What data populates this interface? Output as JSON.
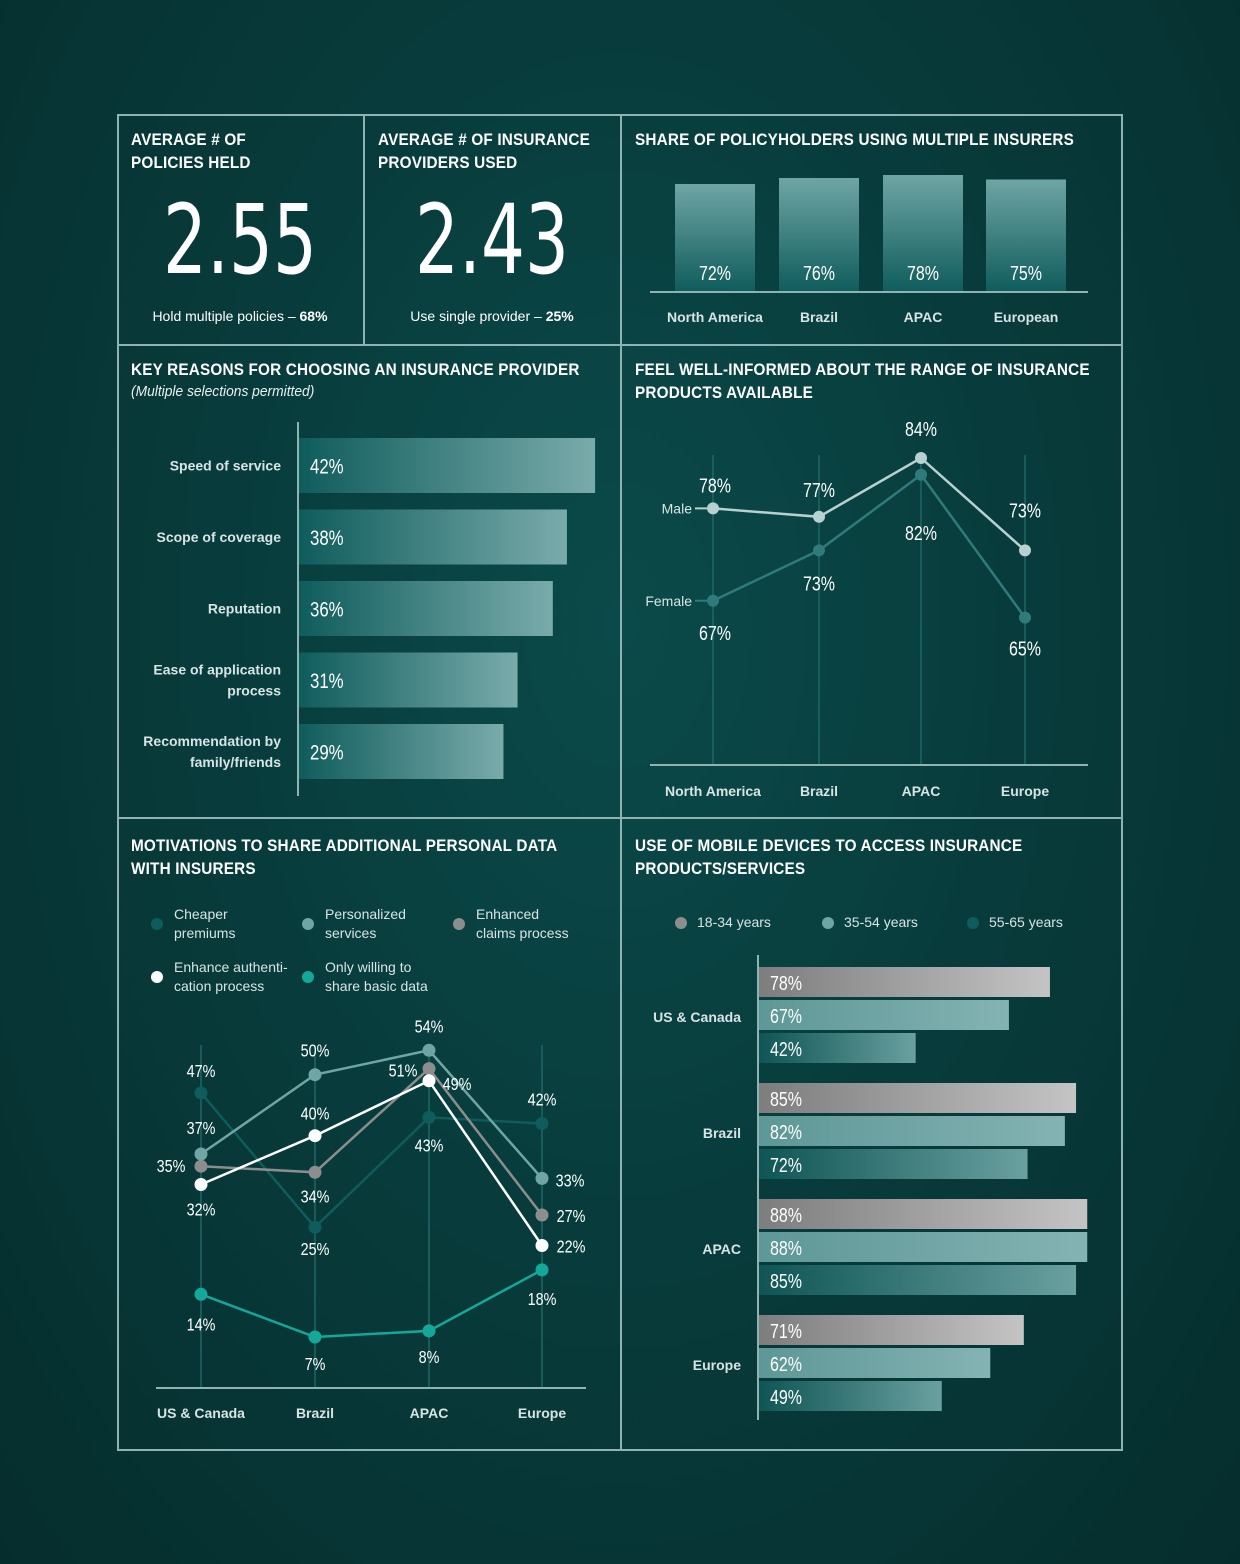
{
  "panels": {
    "avg_policies": {
      "title": "AVERAGE # OF\nPOLICIES HELD",
      "value": "2.55",
      "caption_text": "Hold multiple policies – ",
      "caption_value": "68%"
    },
    "avg_providers": {
      "title": "AVERAGE # OF INSURANCE\nPROVIDERS USED",
      "value": "2.43",
      "caption_text": "Use single provider – ",
      "caption_value": "25%"
    },
    "multiple_insurers": {
      "title": "SHARE OF POLICYHOLDERS USING MULTIPLE INSURERS"
    },
    "key_reasons": {
      "title": "KEY REASONS FOR CHOOSING AN INSURANCE PROVIDER",
      "subtitle": "(Multiple selections permitted)"
    },
    "well_informed": {
      "title": "FEEL WELL-INFORMED ABOUT THE RANGE OF INSURANCE\nPRODUCTS AVAILABLE"
    },
    "motivations": {
      "title": "MOTIVATIONS TO SHARE ADDITIONAL PERSONAL DATA\nWITH INSURERS"
    },
    "mobile": {
      "title": "USE OF MOBILE DEVICES TO ACCESS INSURANCE\nPRODUCTS/SERVICES"
    }
  },
  "colors": {
    "background": "#083c3c",
    "border": "#8fb3b3",
    "teal_dark": "#0f5c5c",
    "teal_mid": "#6fa5a5",
    "grey": "#8d8d8d",
    "white": "#ffffff",
    "bright_teal": "#13a89a"
  },
  "chart_data": [
    {
      "id": "multiple_insurers",
      "type": "bar",
      "categories": [
        "North America",
        "Brazil",
        "APAC",
        "European"
      ],
      "values": [
        72,
        76,
        78,
        75
      ],
      "value_labels": [
        "72%",
        "76%",
        "78%",
        "75%"
      ]
    },
    {
      "id": "key_reasons",
      "type": "bar",
      "orientation": "horizontal",
      "categories": [
        "Speed of service",
        "Scope of coverage",
        "Reputation",
        "Ease of application\nprocess",
        "Recommendation by\nfamily/friends"
      ],
      "values": [
        42,
        38,
        36,
        31,
        29
      ],
      "value_labels": [
        "42%",
        "38%",
        "36%",
        "31%",
        "29%"
      ]
    },
    {
      "id": "well_informed",
      "type": "line",
      "categories": [
        "North America",
        "Brazil",
        "APAC",
        "Europe"
      ],
      "series": [
        {
          "name": "Male",
          "values": [
            78,
            77,
            84,
            73
          ],
          "labels": [
            "78%",
            "77%",
            "84%",
            "73%"
          ],
          "color": "#b9d0d0"
        },
        {
          "name": "Female",
          "values": [
            67,
            73,
            82,
            65
          ],
          "labels": [
            "67%",
            "73%",
            "82%",
            "65%"
          ],
          "color": "#2f7b7b"
        }
      ]
    },
    {
      "id": "motivations",
      "type": "line",
      "categories": [
        "US & Canada",
        "Brazil",
        "APAC",
        "Europe"
      ],
      "series": [
        {
          "name": "Cheaper\npremiums",
          "values": [
            47,
            25,
            43,
            42
          ],
          "labels": [
            "47%",
            "25%",
            "43%",
            "42%"
          ],
          "color": "#0f5c5c"
        },
        {
          "name": "Personalized\nservices",
          "values": [
            37,
            50,
            54,
            33
          ],
          "labels": [
            "37%",
            "50%",
            "54%",
            "33%"
          ],
          "color": "#6fa5a5"
        },
        {
          "name": "Enhanced\nclaims process",
          "values": [
            35,
            34,
            51,
            27
          ],
          "labels": [
            "35%",
            "34%",
            "51%",
            "27%"
          ],
          "color": "#8d8d8d"
        },
        {
          "name": "Enhance authenti-\ncation process",
          "values": [
            32,
            40,
            49,
            22
          ],
          "labels": [
            "32%",
            "40%",
            "49%",
            "22%"
          ],
          "color": "#ffffff"
        },
        {
          "name": "Only willing to\nshare basic data",
          "values": [
            14,
            7,
            8,
            18
          ],
          "labels": [
            "14%",
            "7%",
            "8%",
            "18%"
          ],
          "color": "#13a89a"
        }
      ]
    },
    {
      "id": "mobile",
      "type": "bar",
      "orientation": "horizontal",
      "categories": [
        "US & Canada",
        "Brazil",
        "APAC",
        "Europe"
      ],
      "series": [
        {
          "name": "18-34 years",
          "values": [
            78,
            85,
            88,
            71
          ],
          "labels": [
            "78%",
            "85%",
            "88%",
            "71%"
          ],
          "color": "#8d8d8d"
        },
        {
          "name": "35-54 years",
          "values": [
            67,
            82,
            88,
            62
          ],
          "labels": [
            "67%",
            "82%",
            "88%",
            "62%"
          ],
          "color": "#6fa5a5"
        },
        {
          "name": "55-65 years",
          "values": [
            42,
            72,
            85,
            49
          ],
          "labels": [
            "42%",
            "72%",
            "85%",
            "49%"
          ],
          "color": "#0f5c5c"
        }
      ]
    }
  ]
}
